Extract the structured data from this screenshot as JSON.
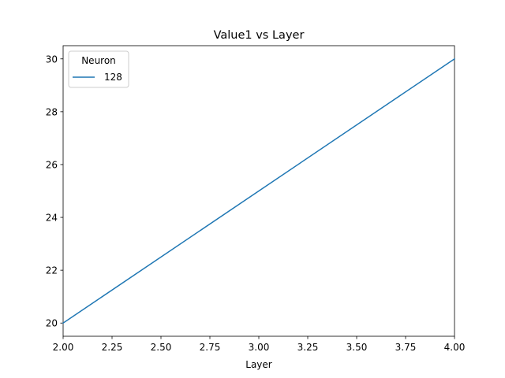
{
  "colors": {
    "series": "#1f77b4",
    "axes": "#000000",
    "legend_border": "#cccccc",
    "background": "#ffffff"
  },
  "chart_data": {
    "type": "line",
    "title": "Value1 vs Layer",
    "xlabel": "Layer",
    "ylabel": "",
    "xlim": [
      2.0,
      4.0
    ],
    "ylim": [
      19.5,
      30.5
    ],
    "x_ticks": [
      2.0,
      2.25,
      2.5,
      2.75,
      3.0,
      3.25,
      3.5,
      3.75,
      4.0
    ],
    "x_tick_labels": [
      "2.00",
      "2.25",
      "2.50",
      "2.75",
      "3.00",
      "3.25",
      "3.50",
      "3.75",
      "4.00"
    ],
    "y_ticks": [
      20,
      22,
      24,
      26,
      28,
      30
    ],
    "y_tick_labels": [
      "20",
      "22",
      "24",
      "26",
      "28",
      "30"
    ],
    "grid": false,
    "legend": {
      "title": "Neuron",
      "placement": "top-left"
    },
    "series": [
      {
        "name": "128",
        "x": [
          2,
          3,
          4
        ],
        "y": [
          20,
          25,
          30
        ]
      }
    ]
  }
}
